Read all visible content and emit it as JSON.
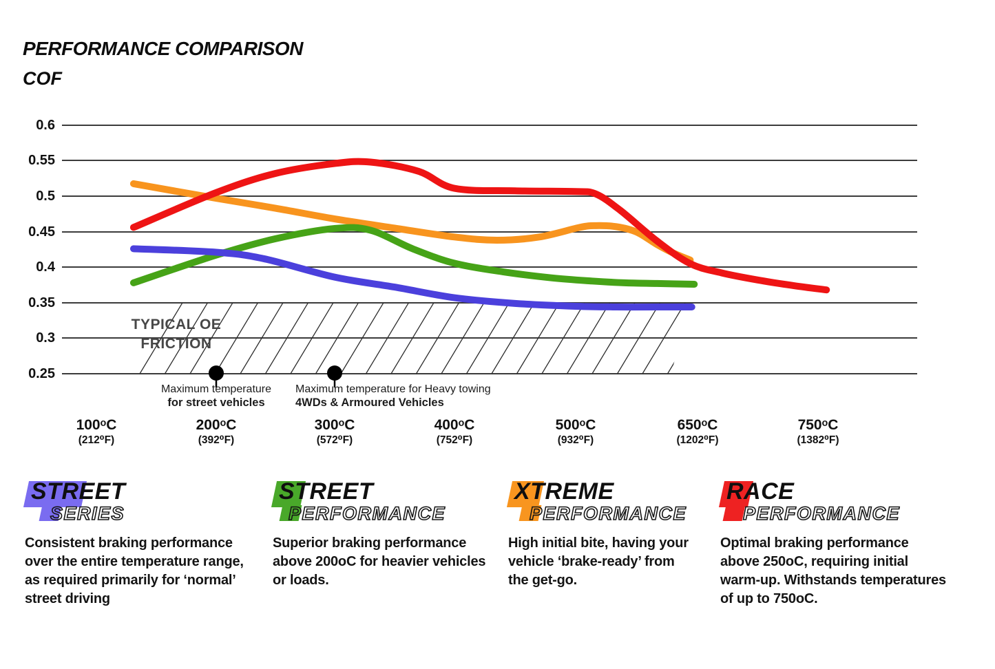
{
  "header": {
    "title": "PERFORMANCE COMPARISON",
    "y_axis_title": "COF"
  },
  "chart_data": {
    "type": "line",
    "title": "PERFORMANCE COMPARISON",
    "ylabel": "COF",
    "grid": true,
    "legend_position": "bottom",
    "ylim": [
      0.25,
      0.62
    ],
    "y_ticks": [
      "0.6",
      "0.55",
      "0.5",
      "0.45",
      "0.4",
      "0.35",
      "0.3",
      "0.25"
    ],
    "y_tick_values": [
      0.6,
      0.55,
      0.5,
      0.45,
      0.4,
      0.35,
      0.3,
      0.25
    ],
    "x_ticks": [
      {
        "temp": 100,
        "c": "100ᵒC",
        "f": "(212⁰F)"
      },
      {
        "temp": 200,
        "c": "200ᵒC",
        "f": "(392⁰F)"
      },
      {
        "temp": 300,
        "c": "300ᵒC",
        "f": "(572⁰F)"
      },
      {
        "temp": 400,
        "c": "400ᵒC",
        "f": "(752⁰F)"
      },
      {
        "temp": 500,
        "c": "500ᵒC",
        "f": "(932⁰F)"
      },
      {
        "temp": 650,
        "c": "650ᵒC",
        "f": "(1202⁰F)"
      },
      {
        "temp": 750,
        "c": "750ᵒC",
        "f": "(1382⁰F)"
      }
    ],
    "series": [
      {
        "name": "Xtreme Performance",
        "color": "#f8941e",
        "points": [
          [
            131,
            0.5175
          ],
          [
            200,
            0.497
          ],
          [
            250,
            0.483
          ],
          [
            300,
            0.468
          ],
          [
            350,
            0.455
          ],
          [
            400,
            0.4425
          ],
          [
            435,
            0.438
          ],
          [
            470,
            0.4425
          ],
          [
            505,
            0.456
          ],
          [
            525,
            0.4585
          ],
          [
            550,
            0.457
          ],
          [
            575,
            0.4495
          ],
          [
            600,
            0.432
          ],
          [
            620,
            0.42
          ],
          [
            641,
            0.41
          ]
        ]
      },
      {
        "name": "Street Performance",
        "color": "#46a317",
        "points": [
          [
            131,
            0.378
          ],
          [
            200,
            0.417
          ],
          [
            250,
            0.44
          ],
          [
            300,
            0.4545
          ],
          [
            330,
            0.452
          ],
          [
            365,
            0.426
          ],
          [
            400,
            0.4055
          ],
          [
            440,
            0.3935
          ],
          [
            480,
            0.385
          ],
          [
            520,
            0.3805
          ],
          [
            560,
            0.378
          ],
          [
            600,
            0.377
          ],
          [
            646,
            0.376
          ]
        ]
      },
      {
        "name": "Street Series",
        "color": "#4b40dc",
        "points": [
          [
            131,
            0.426
          ],
          [
            200,
            0.421
          ],
          [
            240,
            0.412
          ],
          [
            300,
            0.386
          ],
          [
            350,
            0.372
          ],
          [
            400,
            0.357
          ],
          [
            450,
            0.349
          ],
          [
            500,
            0.345
          ],
          [
            550,
            0.344
          ],
          [
            600,
            0.344
          ],
          [
            643,
            0.344
          ]
        ]
      },
      {
        "name": "Race Performance",
        "color": "#ee1414",
        "points": [
          [
            131,
            0.456
          ],
          [
            200,
            0.505
          ],
          [
            250,
            0.532
          ],
          [
            300,
            0.546
          ],
          [
            330,
            0.548
          ],
          [
            370,
            0.535
          ],
          [
            400,
            0.511
          ],
          [
            450,
            0.5075
          ],
          [
            500,
            0.5065
          ],
          [
            525,
            0.503
          ],
          [
            555,
            0.48
          ],
          [
            600,
            0.437
          ],
          [
            641,
            0.405
          ],
          [
            670,
            0.392
          ],
          [
            700,
            0.382
          ],
          [
            730,
            0.374
          ],
          [
            757,
            0.368
          ]
        ]
      }
    ],
    "oe_zone": {
      "label_line1": "TYPICAL OE",
      "label_line2": "FRICTION",
      "cof_from": 0.25,
      "cof_to": 0.35
    },
    "annotations": [
      {
        "temp": 200,
        "line1": "Maximum temperature",
        "line2": "for street vehicles",
        "align": "center"
      },
      {
        "temp": 300,
        "line1": "Maximum temperature for Heavy towing",
        "line2": "4WDs & Armoured Vehicles",
        "align": "left"
      }
    ]
  },
  "legend": [
    {
      "word_top": "STREET",
      "word_bottom": "SERIES",
      "color": "#7a6cf0",
      "description": "Consistent braking performance over the entire temperature range, as required primarily for ‘normal’ street driving"
    },
    {
      "word_top": "STREET",
      "word_bottom": "PERFORMANCE",
      "color": "#49a82a",
      "description": "Superior braking performance above 200oC for heavier vehicles or loads."
    },
    {
      "word_top": "XTREME",
      "word_bottom": "PERFORMANCE",
      "color": "#f8951f",
      "description": "High initial bite, having your vehicle ‘brake-ready’ from the get-go."
    },
    {
      "word_top": "RACE",
      "word_bottom": "PERFORMANCE",
      "color": "#ee2222",
      "description": "Optimal braking performance above 250oC, requiring initial warm-up. Withstands temperatures of up to 750oC."
    }
  ]
}
